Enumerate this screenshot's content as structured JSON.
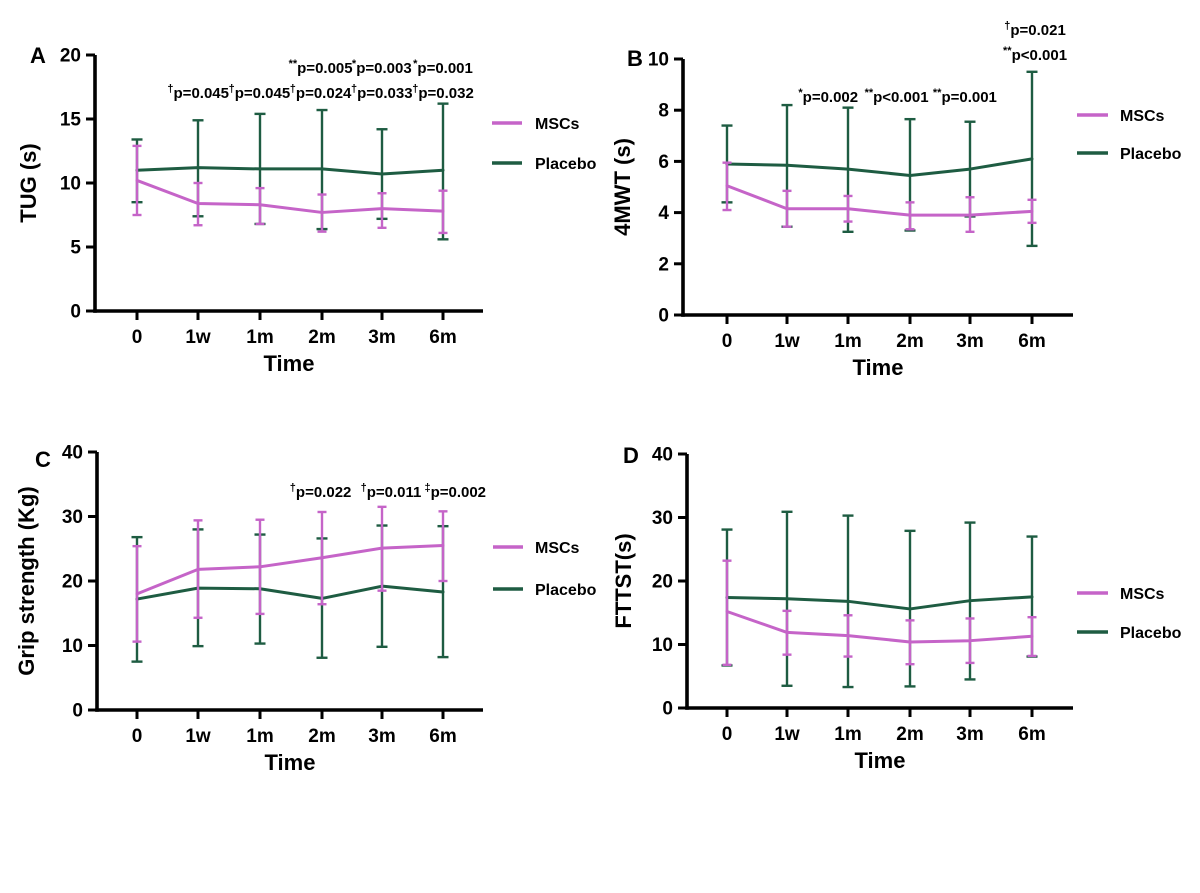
{
  "figure": {
    "background": "#ffffff",
    "axis_color": "#000000",
    "series_colors": {
      "MSCs": "#c564c8",
      "Placebo": "#1e5c42"
    },
    "legend_labels": [
      "MSCs",
      "Placebo"
    ]
  },
  "chart_data": [
    {
      "type": "line",
      "panel": "A",
      "title": "",
      "ylabel": "TUG (s)",
      "xlabel": "Time",
      "ylim": [
        0,
        20
      ],
      "yticks": [
        0,
        5,
        10,
        15,
        20
      ],
      "categories": [
        "0",
        "1w",
        "1m",
        "2m",
        "3m",
        "6m"
      ],
      "grid": false,
      "legend_position": "right",
      "legend": [
        "MSCs",
        "Placebo"
      ],
      "series": [
        {
          "name": "MSCs",
          "values": [
            10.2,
            8.4,
            8.3,
            7.7,
            8.0,
            7.8
          ],
          "err_lo": [
            7.5,
            6.7,
            6.8,
            6.2,
            6.5,
            6.1
          ],
          "err_hi": [
            12.9,
            10.0,
            9.6,
            9.1,
            9.2,
            9.4
          ]
        },
        {
          "name": "Placebo",
          "values": [
            11.0,
            11.2,
            11.1,
            11.1,
            10.7,
            11.0
          ],
          "err_lo": [
            8.5,
            7.4,
            6.8,
            6.4,
            7.2,
            5.6
          ],
          "err_hi": [
            13.4,
            14.9,
            15.4,
            15.7,
            14.2,
            16.2
          ]
        }
      ],
      "annotations": [
        {
          "sup": "**",
          "text": "p=0.005",
          "ci": 3,
          "row": "1"
        },
        {
          "sup": "*",
          "text": "p=0.003",
          "ci": 4,
          "row": "1"
        },
        {
          "sup": "*",
          "text": "p=0.001",
          "ci": 5,
          "row": "1"
        },
        {
          "sup": "†",
          "text": "p=0.045",
          "ci": 1,
          "row": "2"
        },
        {
          "sup": "†",
          "text": "p=0.045",
          "ci": 2,
          "row": "2"
        },
        {
          "sup": "†",
          "text": "p=0.024",
          "ci": 3,
          "row": "2"
        },
        {
          "sup": "†",
          "text": "p=0.033",
          "ci": 4,
          "row": "2"
        },
        {
          "sup": "†",
          "text": "p=0.032",
          "ci": 5,
          "row": "2"
        }
      ]
    },
    {
      "type": "line",
      "panel": "B",
      "title": "",
      "ylabel": "4MWT (s)",
      "xlabel": "Time",
      "ylim": [
        0,
        10
      ],
      "yticks": [
        0,
        2,
        4,
        6,
        8,
        10
      ],
      "categories": [
        "0",
        "1w",
        "1m",
        "2m",
        "3m",
        "6m"
      ],
      "grid": false,
      "legend_position": "right",
      "legend": [
        "MSCs",
        "Placebo"
      ],
      "series": [
        {
          "name": "MSCs",
          "values": [
            5.05,
            4.15,
            4.15,
            3.9,
            3.9,
            4.05
          ],
          "err_lo": [
            4.1,
            3.45,
            3.65,
            3.35,
            3.25,
            3.6
          ],
          "err_hi": [
            5.95,
            4.85,
            4.65,
            4.4,
            4.6,
            4.5
          ]
        },
        {
          "name": "Placebo",
          "values": [
            5.9,
            5.85,
            5.7,
            5.45,
            5.7,
            6.1
          ],
          "err_lo": [
            4.4,
            3.45,
            3.25,
            3.3,
            3.85,
            2.7
          ],
          "err_hi": [
            7.4,
            8.2,
            8.1,
            7.65,
            7.55,
            9.5
          ]
        }
      ],
      "annotations": [
        {
          "sup": "†",
          "text": "p=0.021",
          "ci": 5.05,
          "row": "0"
        },
        {
          "sup": "**",
          "text": "p<0.001",
          "ci": 5.05,
          "row": "1"
        },
        {
          "sup": "*",
          "text": "p=0.002",
          "ci": 1.66,
          "row": "2"
        },
        {
          "sup": "**",
          "text": "p<0.001",
          "ci": 2.78,
          "row": "2"
        },
        {
          "sup": "**",
          "text": "p=0.001",
          "ci": 3.9,
          "row": "2"
        }
      ]
    },
    {
      "type": "line",
      "panel": "C",
      "title": "",
      "ylabel": "Grip strength (Kg)",
      "xlabel": "Time",
      "ylim": [
        0,
        40
      ],
      "yticks": [
        0,
        10,
        20,
        30,
        40
      ],
      "categories": [
        "0",
        "1w",
        "1m",
        "2m",
        "3m",
        "6m"
      ],
      "grid": false,
      "legend_position": "right",
      "legend": [
        "MSCs",
        "Placebo"
      ],
      "series": [
        {
          "name": "MSCs",
          "values": [
            18.0,
            21.8,
            22.2,
            23.6,
            25.1,
            25.5
          ],
          "err_lo": [
            10.6,
            14.3,
            14.9,
            16.4,
            18.5,
            20.0
          ],
          "err_hi": [
            25.4,
            29.4,
            29.5,
            30.7,
            31.5,
            30.8
          ]
        },
        {
          "name": "Placebo",
          "values": [
            17.2,
            18.9,
            18.8,
            17.3,
            19.2,
            18.3
          ],
          "err_lo": [
            7.5,
            9.9,
            10.3,
            8.1,
            9.8,
            8.2
          ],
          "err_hi": [
            26.8,
            28.0,
            27.2,
            26.6,
            28.6,
            28.5
          ]
        }
      ],
      "annotations": [
        {
          "sup": "†",
          "text": "p=0.022",
          "ci": 3,
          "row": "1"
        },
        {
          "sup": "†",
          "text": "p=0.011",
          "ci": 4.15,
          "row": "1"
        },
        {
          "sup": "‡",
          "text": "p=0.002",
          "ci": 5.2,
          "row": "1"
        }
      ]
    },
    {
      "type": "line",
      "panel": "D",
      "title": "",
      "ylabel": "FTTST(s)",
      "xlabel": "Time",
      "ylim": [
        0,
        40
      ],
      "yticks": [
        0,
        10,
        20,
        30,
        40
      ],
      "categories": [
        "0",
        "1w",
        "1m",
        "2m",
        "3m",
        "6m"
      ],
      "grid": false,
      "legend_position": "right",
      "legend": [
        "MSCs",
        "Placebo"
      ],
      "series": [
        {
          "name": "MSCs",
          "values": [
            15.2,
            11.9,
            11.4,
            10.4,
            10.6,
            11.3
          ],
          "err_lo": [
            6.8,
            8.4,
            8.1,
            6.9,
            7.1,
            8.2
          ],
          "err_hi": [
            23.2,
            15.3,
            14.6,
            13.8,
            14.1,
            14.3
          ]
        },
        {
          "name": "Placebo",
          "values": [
            17.4,
            17.2,
            16.8,
            15.6,
            16.9,
            17.5
          ],
          "err_lo": [
            6.7,
            3.5,
            3.3,
            3.4,
            4.5,
            8.1
          ],
          "err_hi": [
            28.1,
            30.9,
            30.3,
            27.9,
            29.2,
            27.0
          ]
        }
      ],
      "annotations": []
    }
  ]
}
